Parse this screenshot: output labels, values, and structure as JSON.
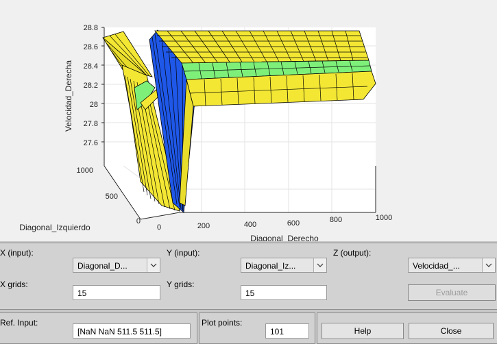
{
  "plot": {
    "z_label": "Velocidad_Derecha",
    "x_label": "Diagonal_Derecho",
    "y_label": "Diagonal_Izquierdo",
    "z_ticks": [
      "28.8",
      "28.6",
      "28.4",
      "28.2",
      "28",
      "27.8",
      "27.6"
    ],
    "x_ticks": [
      "0",
      "200",
      "400",
      "600",
      "800",
      "1000"
    ],
    "y_ticks": [
      "1000",
      "500",
      "0"
    ],
    "colors": {
      "yellow": "#f3e734",
      "green": "#7ef07a",
      "blue": "#1f58e8",
      "edge": "#000000"
    }
  },
  "controls": {
    "x_input_label": "X (input):",
    "x_input_value": "Diagonal_D...",
    "y_input_label": "Y (input):",
    "y_input_value": "Diagonal_Iz...",
    "z_output_label": "Z (output):",
    "z_output_value": "Velocidad_...",
    "x_grids_label": "X grids:",
    "x_grids_value": "15",
    "y_grids_label": "Y grids:",
    "y_grids_value": "15",
    "evaluate_label": "Evaluate",
    "ref_input_label": "Ref. Input:",
    "ref_input_value": "[NaN NaN 511.5 511.5]",
    "plot_points_label": "Plot points:",
    "plot_points_value": "101",
    "help_label": "Help",
    "close_label": "Close"
  }
}
